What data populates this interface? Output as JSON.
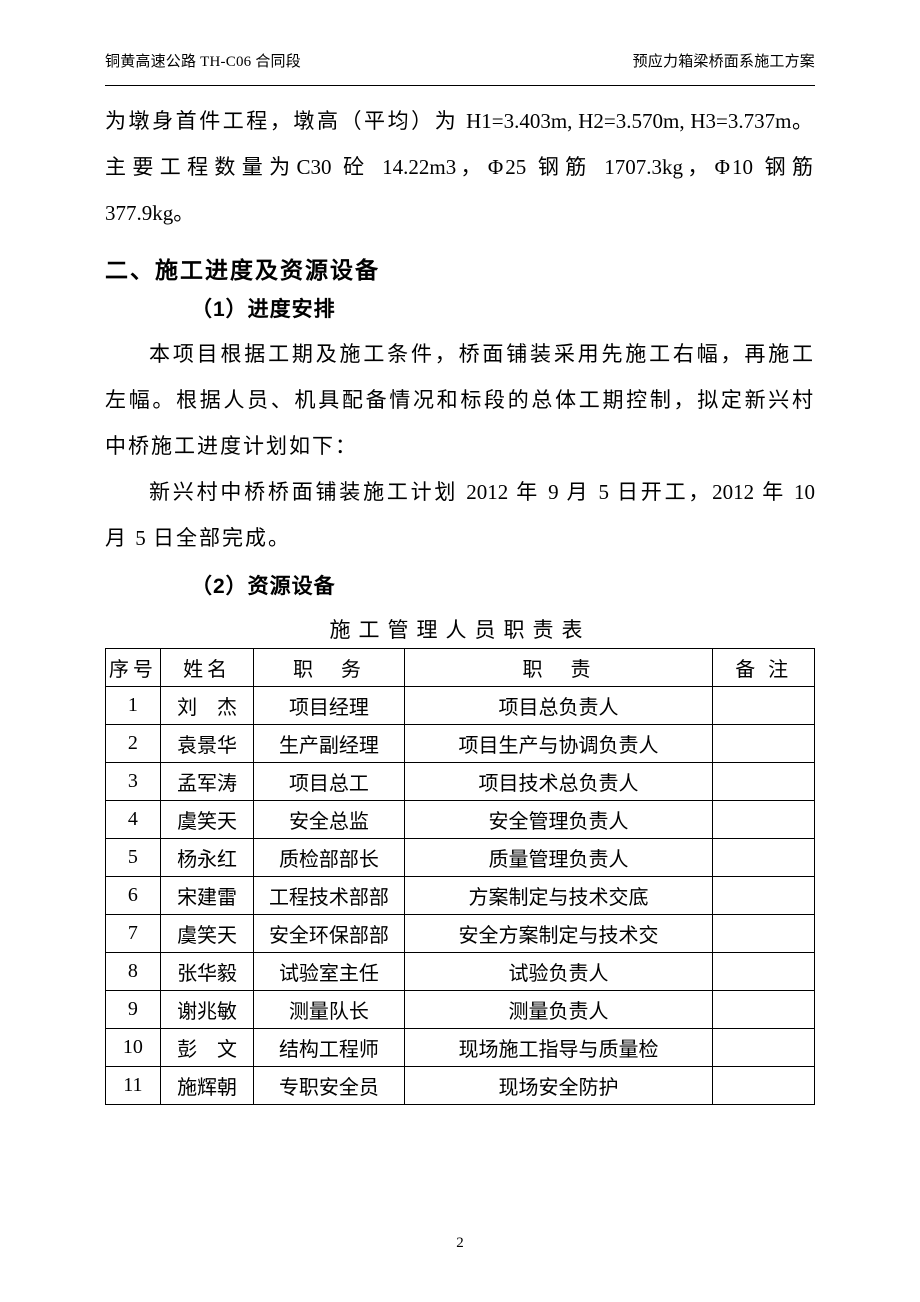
{
  "header": {
    "left_prefix": "铜黄高速公路",
    "left_code": " TH-C06 ",
    "left_suffix": "合同段",
    "right": "预应力箱梁桥面系施工方案"
  },
  "para1_a": "为墩身首件工程，墩高（平均）为",
  "para1_b": "H1=3.403m,  H2=3.570m, H3=3.737m",
  "para1_c": "。主要工程数量为",
  "para1_d": "C30",
  "para1_e": " 砼 ",
  "para1_f": "14.22m3",
  "para1_g": "，Φ",
  "para1_h": "25",
  "para1_i": " 钢筋 ",
  "para1_j": "1707.3kg",
  "para1_k": "，Φ",
  "para1_l": "10",
  "para1_m": " 钢筋 ",
  "para1_n": "377.9kg",
  "para1_o": "。",
  "section2_title": "二、施工进度及资源设备",
  "sub1_title": "（1）进度安排",
  "para2": "本项目根据工期及施工条件，桥面铺装采用先施工右幅，再施工左幅。根据人员、机具配备情况和标段的总体工期控制，拟定新兴村中桥施工进度计划如下：",
  "para3_a": "新兴村中桥桥面铺装施工计划 ",
  "para3_b": "2012",
  "para3_c": " 年 ",
  "para3_d": "9",
  "para3_e": " 月 ",
  "para3_f": "5",
  "para3_g": " 日开工，",
  "para3_h": "2012",
  "para3_i": " 年 ",
  "para3_j": "10",
  "para3_k": " 月 ",
  "para3_l": "5",
  "para3_m": " 日全部完成。",
  "sub2_title": "（2）资源设备",
  "table_title": "施工管理人员职责表",
  "table": {
    "headers": [
      "序号",
      "姓名",
      "职　务",
      "职　责",
      "备 注"
    ],
    "rows": [
      {
        "n": "1",
        "name": "刘　杰",
        "pos": "项目经理",
        "duty": "项目总负责人",
        "note": "",
        "sp": true
      },
      {
        "n": "2",
        "name": "袁景华",
        "pos": "生产副经理",
        "duty": "项目生产与协调负责人",
        "note": "",
        "sp": false
      },
      {
        "n": "3",
        "name": "孟军涛",
        "pos": "项目总工",
        "duty": "项目技术总负责人",
        "note": "",
        "sp": false
      },
      {
        "n": "4",
        "name": "虞笑天",
        "pos": "安全总监",
        "duty": "安全管理负责人",
        "note": "",
        "sp": false
      },
      {
        "n": "5",
        "name": "杨永红",
        "pos": "质检部部长",
        "duty": "质量管理负责人",
        "note": "",
        "sp": false
      },
      {
        "n": "6",
        "name": "宋建雷",
        "pos": "工程技术部部",
        "duty": "方案制定与技术交底",
        "note": "",
        "sp": false
      },
      {
        "n": "7",
        "name": "虞笑天",
        "pos": "安全环保部部",
        "duty": "安全方案制定与技术交",
        "note": "",
        "sp": false
      },
      {
        "n": "8",
        "name": "张华毅",
        "pos": "试验室主任",
        "duty": "试验负责人",
        "note": "",
        "sp": false
      },
      {
        "n": "9",
        "name": "谢兆敏",
        "pos": "测量队长",
        "duty": "测量负责人",
        "note": "",
        "sp": false
      },
      {
        "n": "10",
        "name": "彭　文",
        "pos": "结构工程师",
        "duty": "现场施工指导与质量检",
        "note": "",
        "sp": true
      },
      {
        "n": "11",
        "name": "施辉朝",
        "pos": "专职安全员",
        "duty": "现场安全防护",
        "note": "",
        "sp": false
      }
    ]
  },
  "page_number": "2"
}
